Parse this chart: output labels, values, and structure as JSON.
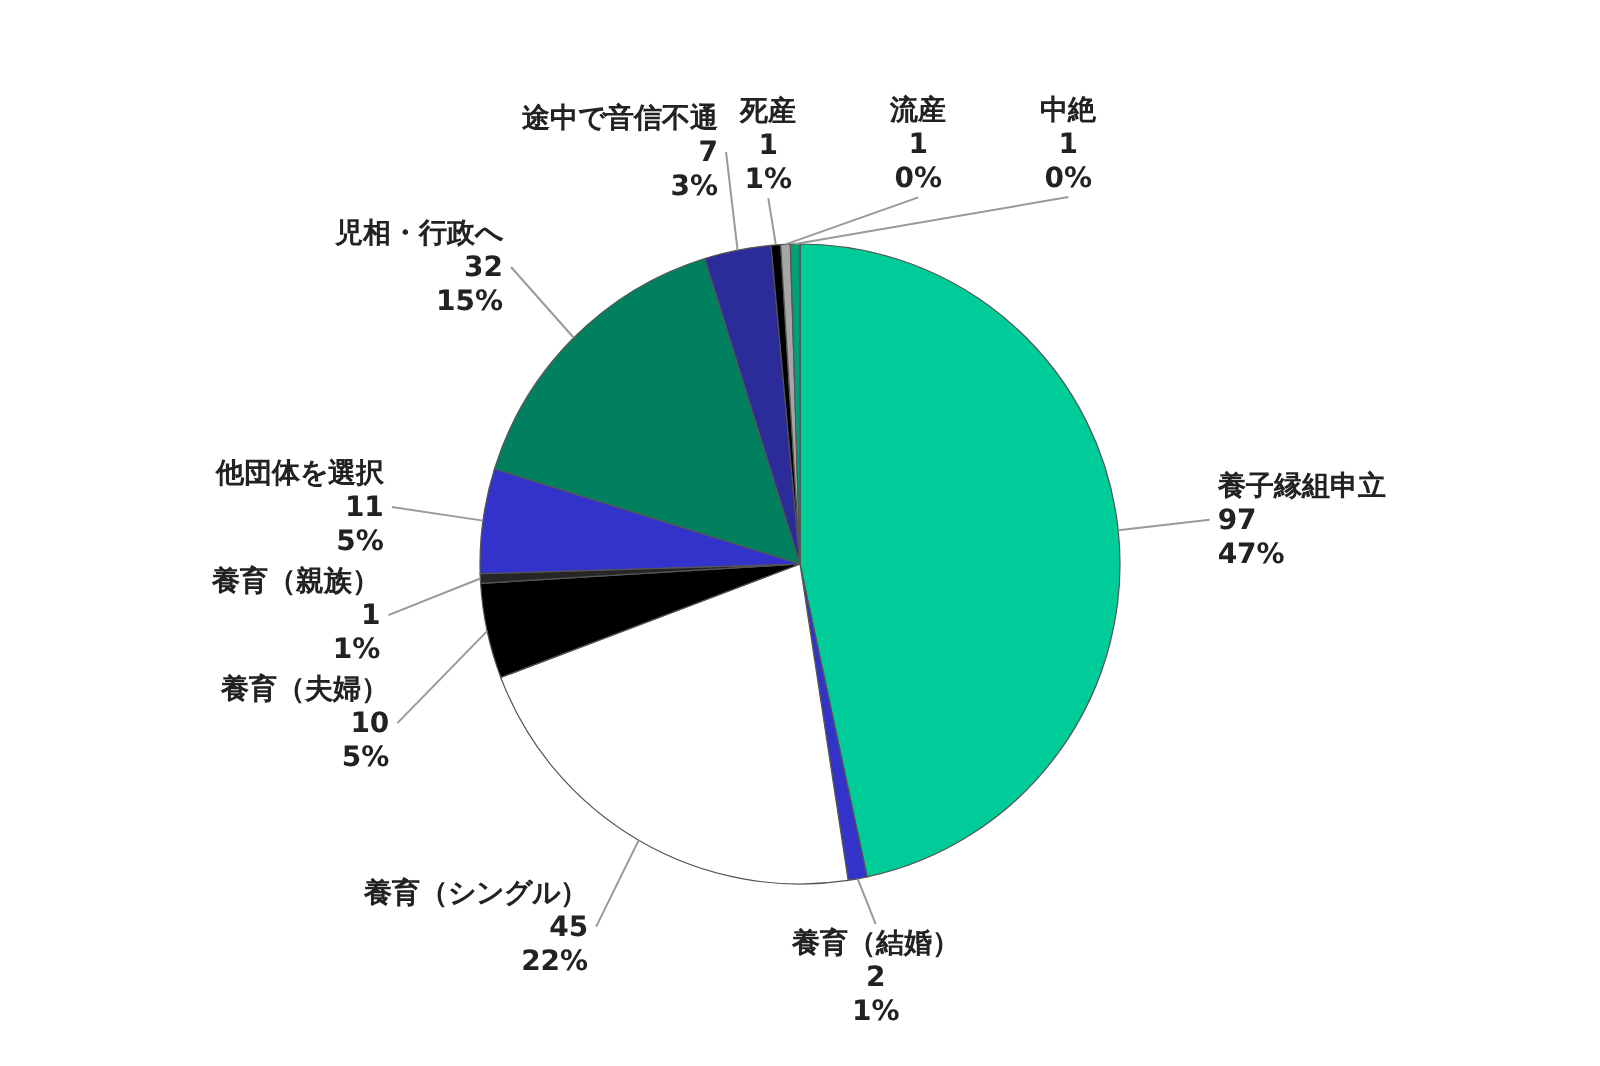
{
  "chart_data": {
    "type": "pie",
    "categories": [
      "養子縁組申立",
      "養育（結婚）",
      "養育（シングル）",
      "養育（夫婦）",
      "養育（親族）",
      "他団体を選択",
      "児相・行政へ",
      "途中で音信不通",
      "死産",
      "流産",
      "中絶"
    ],
    "values": [
      97,
      2,
      45,
      10,
      1,
      11,
      32,
      7,
      1,
      1,
      1
    ],
    "colors": [
      "#00cc99",
      "#3333cc",
      "#ffffff",
      "#000000",
      "#262626",
      "#3333cc",
      "#00805f",
      "#2b2b99",
      "#000000",
      "#a6a6a6",
      "#00a077"
    ],
    "value_labels": [
      "97\n47%",
      "2\n1%",
      "45\n22%",
      "10\n5%",
      "1\n1%",
      "11\n5%",
      "32\n15%",
      "7\n3%",
      "1\n1%",
      "1\n0%",
      "1\n0%"
    ]
  }
}
